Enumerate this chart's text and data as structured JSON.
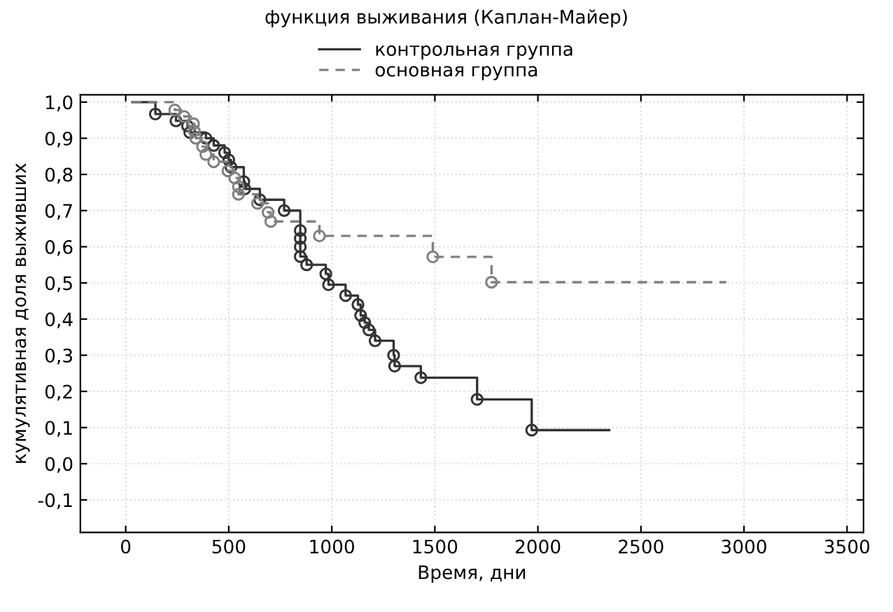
{
  "chart_data": {
    "type": "step",
    "title": "функция выживания (Каплан-Майер)",
    "xlabel": "Время, дни",
    "ylabel": "кумулятивная доля выживших",
    "xlim": [
      -220,
      3580
    ],
    "ylim": [
      -0.19,
      1.02
    ],
    "xticks": [
      0,
      500,
      1000,
      1500,
      2000,
      2500,
      3000,
      3500
    ],
    "yticks": [
      {
        "value": -0.1,
        "label": "-0,1"
      },
      {
        "value": 0.0,
        "label": "0,0"
      },
      {
        "value": 0.1,
        "label": "0,1"
      },
      {
        "value": 0.2,
        "label": "0,2"
      },
      {
        "value": 0.3,
        "label": "0,3"
      },
      {
        "value": 0.4,
        "label": "0,4"
      },
      {
        "value": 0.5,
        "label": "0,5"
      },
      {
        "value": 0.6,
        "label": "0,6"
      },
      {
        "value": 0.7,
        "label": "0,7"
      },
      {
        "value": 0.8,
        "label": "0,8"
      },
      {
        "value": 0.9,
        "label": "0,9"
      },
      {
        "value": 1.0,
        "label": "1,0"
      }
    ],
    "grid": true,
    "legend": "top",
    "marker": "circle",
    "series": [
      {
        "name": "контрольная группа",
        "color": "#333333",
        "line_style": "solid",
        "x": [
          33,
          144,
          244,
          300,
          311,
          389,
          427,
          480,
          500,
          511,
          573,
          578,
          651,
          769,
          847,
          847,
          847,
          847,
          878,
          971,
          984,
          1067,
          1127,
          1140,
          1160,
          1180,
          1210,
          1300,
          1305,
          1432,
          1705,
          1970,
          2346
        ],
        "values": [
          1.0,
          0.967,
          0.948,
          0.934,
          0.916,
          0.9,
          0.88,
          0.86,
          0.84,
          0.82,
          0.78,
          0.76,
          0.73,
          0.7,
          0.645,
          0.623,
          0.6,
          0.573,
          0.55,
          0.525,
          0.495,
          0.465,
          0.44,
          0.41,
          0.39,
          0.37,
          0.34,
          0.3,
          0.27,
          0.238,
          0.178,
          0.093,
          0.093
        ]
      },
      {
        "name": "основная группа",
        "color": "#808080",
        "line_style": "dashed",
        "x": [
          30,
          238,
          284,
          329,
          333,
          340,
          373,
          389,
          427,
          496,
          529,
          547,
          547,
          640,
          691,
          704,
          940,
          1490,
          1775,
          2914
        ],
        "values": [
          1.0,
          0.978,
          0.96,
          0.94,
          0.92,
          0.9,
          0.877,
          0.855,
          0.835,
          0.81,
          0.79,
          0.766,
          0.745,
          0.72,
          0.695,
          0.67,
          0.63,
          0.572,
          0.502,
          0.502
        ]
      }
    ]
  }
}
